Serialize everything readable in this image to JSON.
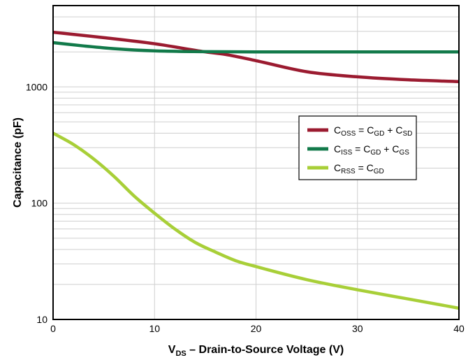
{
  "chart_data": {
    "type": "line",
    "xlabel": {
      "prefix": "V",
      "sub": "DS",
      "rest": " – Drain-to-Source Voltage (V)"
    },
    "ylabel": "Capacitance (pF)",
    "xlim": [
      0,
      40
    ],
    "ylim": [
      10,
      5000
    ],
    "yscale": "log",
    "grid": true,
    "legend_position": "right-middle",
    "x_ticks": [
      0,
      10,
      20,
      30,
      40
    ],
    "x_tick_labels": [
      "0",
      "10",
      "20",
      "30",
      "40"
    ],
    "y_ticks": [
      10,
      100,
      1000
    ],
    "y_tick_labels": [
      "10",
      "100",
      "1000"
    ],
    "series": [
      {
        "label": {
          "lhs": "C",
          "lhs_sub": "OSS",
          "eq": " = ",
          "t1": "C",
          "t1_sub": "GD",
          "plus": " + ",
          "t2": "C",
          "t2_sub": "SD"
        },
        "color": "#9b1b30",
        "x": [
          0,
          5,
          10,
          15,
          17,
          20,
          25,
          30,
          35,
          40
        ],
        "y": [
          2950,
          2650,
          2350,
          2000,
          1900,
          1680,
          1350,
          1220,
          1150,
          1110
        ]
      },
      {
        "label": {
          "lhs": "C",
          "lhs_sub": "ISS",
          "eq": " = ",
          "t1": "C",
          "t1_sub": "GD",
          "plus": " + ",
          "t2": "C",
          "t2_sub": "GS"
        },
        "color": "#127a4a",
        "x": [
          0,
          3,
          6,
          10,
          15,
          20,
          30,
          40
        ],
        "y": [
          2400,
          2250,
          2130,
          2040,
          2010,
          2000,
          2000,
          2000
        ]
      },
      {
        "label": {
          "lhs": "C",
          "lhs_sub": "RSS",
          "eq": " = ",
          "t1": "C",
          "t1_sub": "GD"
        },
        "color": "#a8cf38",
        "x": [
          0,
          2,
          4,
          6,
          8,
          10,
          12,
          14,
          16,
          18,
          20,
          25,
          30,
          35,
          40
        ],
        "y": [
          400,
          320,
          240,
          170,
          115,
          82,
          60,
          46,
          38,
          32,
          28.5,
          22,
          18,
          15,
          12.5
        ]
      }
    ]
  }
}
